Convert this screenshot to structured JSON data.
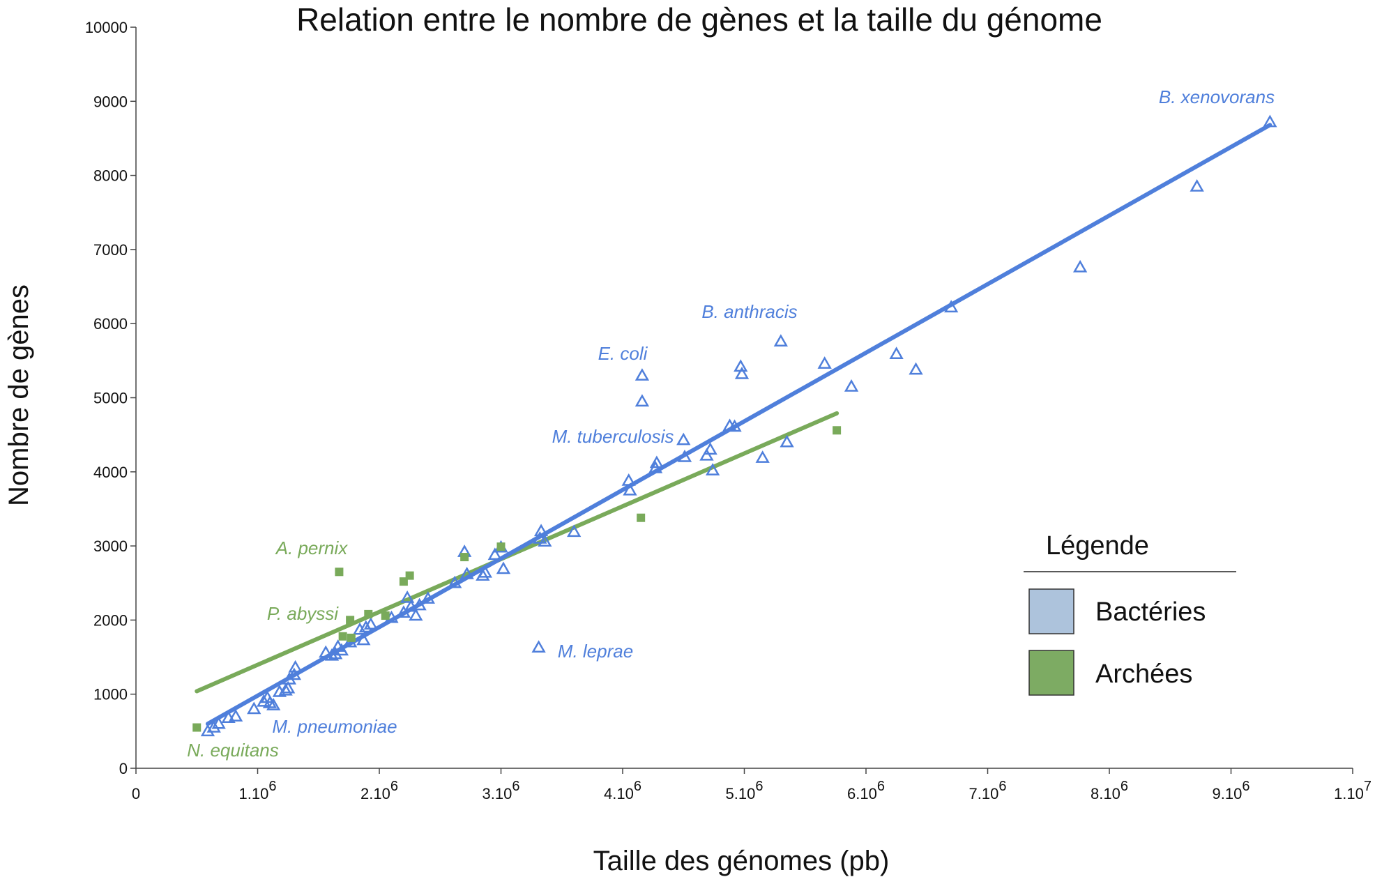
{
  "chart_data": {
    "type": "scatter",
    "title": "Relation entre le nombre de gènes et la taille du génome",
    "xlabel": "Taille des génomes (pb)",
    "ylabel": "Nombre de gènes",
    "xlim": [
      0,
      10000000
    ],
    "ylim": [
      0,
      10000
    ],
    "grid": false,
    "x_ticks": [
      {
        "base": "0",
        "exp": ""
      },
      {
        "base": "1.10",
        "exp": "6"
      },
      {
        "base": "2.10",
        "exp": "6"
      },
      {
        "base": "3.10",
        "exp": "6"
      },
      {
        "base": "4.10",
        "exp": "6"
      },
      {
        "base": "5.10",
        "exp": "6"
      },
      {
        "base": "6.10",
        "exp": "6"
      },
      {
        "base": "7.10",
        "exp": "6"
      },
      {
        "base": "8.10",
        "exp": "6"
      },
      {
        "base": "9.10",
        "exp": "6"
      },
      {
        "base": "1.10",
        "exp": "7"
      }
    ],
    "y_ticks": [
      "0",
      "1000",
      "2000",
      "3000",
      "4000",
      "5000",
      "6000",
      "7000",
      "8000",
      "9000",
      "10000"
    ],
    "colors": {
      "bacteries": "#4f7fdb",
      "archees": "#79aa5a",
      "legend_bacteries": "#adc3dc",
      "legend_archees": "#7dab63"
    },
    "legend": {
      "title": "Légende",
      "position": "right",
      "entries": [
        "Bactéries",
        "Archées"
      ]
    },
    "series": [
      {
        "name": "Bactéries",
        "marker": "triangle",
        "points": [
          [
            590000,
            500
          ],
          [
            640000,
            550
          ],
          [
            680000,
            600
          ],
          [
            760000,
            680
          ],
          [
            820000,
            700
          ],
          [
            970000,
            800
          ],
          [
            1050000,
            900
          ],
          [
            1080000,
            950
          ],
          [
            1100000,
            880
          ],
          [
            1130000,
            850
          ],
          [
            1180000,
            1030
          ],
          [
            1230000,
            1050
          ],
          [
            1250000,
            1080
          ],
          [
            1260000,
            1200
          ],
          [
            1300000,
            1260
          ],
          [
            1310000,
            1360
          ],
          [
            1560000,
            1560
          ],
          [
            1610000,
            1520
          ],
          [
            1640000,
            1540
          ],
          [
            1660000,
            1640
          ],
          [
            1690000,
            1590
          ],
          [
            1760000,
            1700
          ],
          [
            1840000,
            1870
          ],
          [
            1870000,
            1730
          ],
          [
            1890000,
            1900
          ],
          [
            1930000,
            1940
          ],
          [
            2100000,
            2030
          ],
          [
            2200000,
            2100
          ],
          [
            2230000,
            2300
          ],
          [
            2260000,
            2180
          ],
          [
            2300000,
            2060
          ],
          [
            2330000,
            2200
          ],
          [
            2400000,
            2290
          ],
          [
            2620000,
            2500
          ],
          [
            2700000,
            2920
          ],
          [
            2720000,
            2620
          ],
          [
            2850000,
            2600
          ],
          [
            2870000,
            2640
          ],
          [
            2950000,
            2880
          ],
          [
            3000000,
            2980
          ],
          [
            3020000,
            2690
          ],
          [
            3320000,
            3100
          ],
          [
            3330000,
            3200
          ],
          [
            3360000,
            3060
          ],
          [
            3600000,
            3190
          ],
          [
            3310000,
            1630
          ],
          [
            4050000,
            3880
          ],
          [
            4060000,
            3750
          ],
          [
            4160000,
            5300
          ],
          [
            4160000,
            4950
          ],
          [
            4270000,
            4050
          ],
          [
            4280000,
            4120
          ],
          [
            4500000,
            4430
          ],
          [
            4510000,
            4200
          ],
          [
            4690000,
            4220
          ],
          [
            4720000,
            4300
          ],
          [
            4740000,
            4020
          ],
          [
            4880000,
            4620
          ],
          [
            4920000,
            4610
          ],
          [
            4970000,
            5420
          ],
          [
            4980000,
            5320
          ],
          [
            5300000,
            5760
          ],
          [
            5150000,
            4190
          ],
          [
            5350000,
            4400
          ],
          [
            5660000,
            5460
          ],
          [
            5880000,
            5150
          ],
          [
            6250000,
            5590
          ],
          [
            6410000,
            5380
          ],
          [
            6700000,
            6220
          ],
          [
            7760000,
            6760
          ],
          [
            8720000,
            7850
          ],
          [
            9320000,
            8720
          ]
        ],
        "trendline": [
          [
            590000,
            600
          ],
          [
            9320000,
            8680
          ]
        ]
      },
      {
        "name": "Archées",
        "marker": "square",
        "points": [
          [
            500000,
            550
          ],
          [
            1670000,
            2650
          ],
          [
            1700000,
            1780
          ],
          [
            1760000,
            2000
          ],
          [
            1770000,
            1760
          ],
          [
            1910000,
            2080
          ],
          [
            2050000,
            2060
          ],
          [
            2200000,
            2520
          ],
          [
            2250000,
            2600
          ],
          [
            2700000,
            2850
          ],
          [
            3000000,
            2990
          ],
          [
            4150000,
            3380
          ],
          [
            5760000,
            4560
          ]
        ],
        "trendline": [
          [
            500000,
            1040
          ],
          [
            5760000,
            4790
          ]
        ]
      }
    ],
    "annotations": [
      {
        "text": "B. xenovorans",
        "series": "Bactéries"
      },
      {
        "text": "B. anthracis",
        "series": "Bactéries"
      },
      {
        "text": "E. coli",
        "series": "Bactéries"
      },
      {
        "text": "M. tuberculosis",
        "series": "Bactéries"
      },
      {
        "text": "M. leprae",
        "series": "Bactéries"
      },
      {
        "text": "M. pneumoniae",
        "series": "Bactéries"
      },
      {
        "text": "A. pernix",
        "series": "Archées"
      },
      {
        "text": "P. abyssi",
        "series": "Archées"
      },
      {
        "text": "N. equitans",
        "series": "Archées"
      }
    ]
  }
}
